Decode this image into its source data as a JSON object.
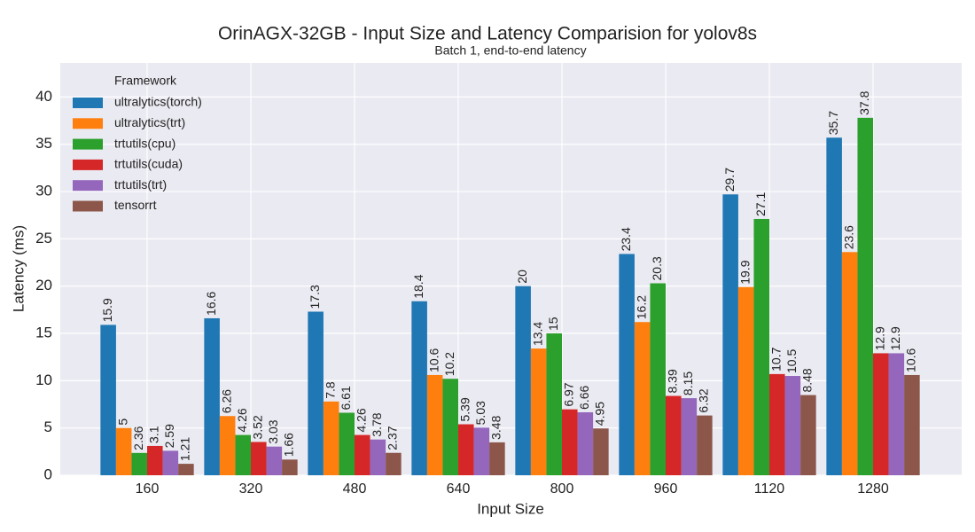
{
  "chart_data": {
    "type": "bar",
    "title": "OrinAGX-32GB - Input Size and Latency Comparision for yolov8s",
    "subtitle": "Batch 1, end-to-end latency",
    "x_label": "Input Size",
    "y_label": "Latency (ms)",
    "legend_title": "Framework",
    "legend_position": "upper-left",
    "grid": true,
    "categories": [
      "160",
      "320",
      "480",
      "640",
      "800",
      "960",
      "1120",
      "1280"
    ],
    "series": [
      {
        "name": "ultralytics(torch)",
        "color": "#1f77b4",
        "values": [
          15.9,
          16.6,
          17.3,
          18.4,
          20,
          23.4,
          29.7,
          35.7
        ]
      },
      {
        "name": "ultralytics(trt)",
        "color": "#ff7f0e",
        "values": [
          5,
          6.26,
          7.8,
          10.6,
          13.4,
          16.2,
          19.9,
          23.6
        ]
      },
      {
        "name": "trtutils(cpu)",
        "color": "#2ca02c",
        "values": [
          2.36,
          4.26,
          6.61,
          10.2,
          15,
          20.3,
          27.1,
          37.8
        ]
      },
      {
        "name": "trtutils(cuda)",
        "color": "#d62728",
        "values": [
          3.1,
          3.52,
          4.26,
          5.39,
          6.97,
          8.39,
          10.7,
          12.9
        ]
      },
      {
        "name": "trtutils(trt)",
        "color": "#9467bd",
        "values": [
          2.59,
          3.03,
          3.78,
          5.03,
          6.66,
          8.15,
          10.5,
          12.9
        ]
      },
      {
        "name": "tensorrt",
        "color": "#8c564b",
        "values": [
          1.21,
          1.66,
          2.37,
          3.48,
          4.95,
          6.32,
          8.48,
          10.6
        ]
      }
    ],
    "ylim": [
      0,
      43.6
    ],
    "yticks": [
      0,
      5,
      10,
      15,
      20,
      25,
      30,
      35,
      40
    ]
  }
}
